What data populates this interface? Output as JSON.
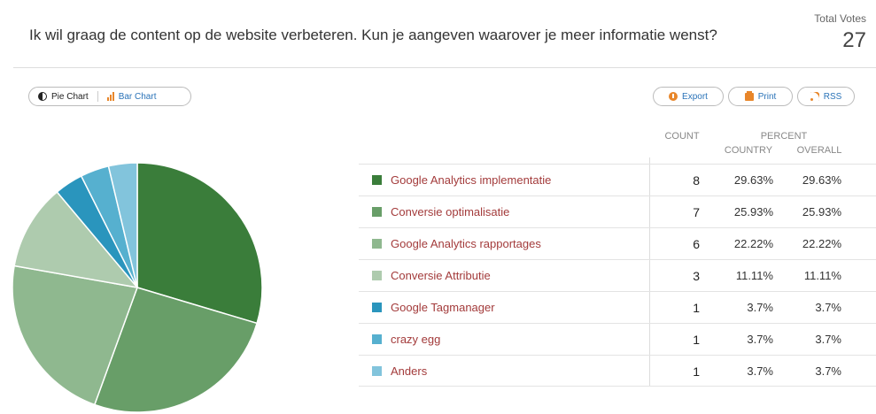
{
  "question": "Ik wil graag de content op de website verbeteren. Kun je aangeven waarover je meer informatie wenst?",
  "total_votes_label": "Total Votes",
  "total_votes": "27",
  "toggle": {
    "pie_label": "Pie Chart",
    "bar_label": "Bar Chart",
    "active": "pie"
  },
  "actions": {
    "export_label": "Export",
    "print_label": "Print",
    "rss_label": "RSS"
  },
  "table_headers": {
    "count": "COUNT",
    "percent": "PERCENT",
    "country": "COUNTRY",
    "overall": "OVERALL"
  },
  "colors": {
    "accent": "#e8862a",
    "link": "#2a73b8",
    "label": "#a33b3b"
  },
  "chart_data": {
    "type": "pie",
    "title": "",
    "categories": [
      "Google Analytics implementatie",
      "Conversie optimalisatie",
      "Google Analytics rapportages",
      "Conversie Attributie",
      "Google Tagmanager",
      "crazy egg",
      "Anders"
    ],
    "values": [
      8,
      7,
      6,
      3,
      1,
      1,
      1
    ],
    "percent_country": [
      "29.63%",
      "25.93%",
      "22.22%",
      "11.11%",
      "3.7%",
      "3.7%",
      "3.7%"
    ],
    "percent_overall": [
      "29.63%",
      "25.93%",
      "22.22%",
      "11.11%",
      "3.7%",
      "3.7%",
      "3.7%"
    ],
    "colors": [
      "#3a7d3a",
      "#689e68",
      "#8fb88f",
      "#aecbae",
      "#2a95bd",
      "#56b0cf",
      "#82c4dc"
    ],
    "start_angle": "top, clockwise"
  }
}
